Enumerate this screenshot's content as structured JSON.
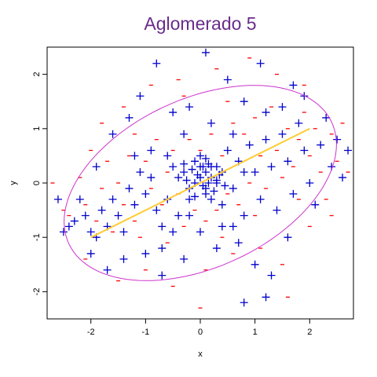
{
  "chart_data": {
    "type": "scatter",
    "title": "Aglomerado 5",
    "xlabel": "x",
    "ylabel": "y",
    "xlim": [
      -2.8,
      2.8
    ],
    "ylim": [
      -2.5,
      2.5
    ],
    "x_ticks": [
      -2,
      -1,
      0,
      1,
      2
    ],
    "y_ticks": [
      -2,
      -1,
      0,
      1,
      2
    ],
    "x_tick_labels": [
      "-2",
      "-1",
      "0",
      "1",
      "2"
    ],
    "y_tick_labels": [
      "-2",
      "-1",
      "0",
      "1",
      "2"
    ],
    "grid": false,
    "colors": {
      "title": "#6a2c8a",
      "plus_points": "#0000cc",
      "minus_points": "#ff0000",
      "ellipse": "#cc33cc",
      "fit_line": "#ffcc33"
    },
    "series": [
      {
        "marker": "plus",
        "points": [
          [
            -2.6,
            -0.3
          ],
          [
            -2.5,
            -0.9
          ],
          [
            -2.4,
            -0.8
          ],
          [
            -2.3,
            -0.7
          ],
          [
            -2.2,
            -0.3
          ],
          [
            -2.1,
            -0.6
          ],
          [
            -2.0,
            -0.9
          ],
          [
            -1.9,
            -1.0
          ],
          [
            -1.9,
            0.3
          ],
          [
            -1.8,
            -0.5
          ],
          [
            -1.7,
            -0.8
          ],
          [
            -1.6,
            -0.3
          ],
          [
            -1.5,
            -0.6
          ],
          [
            -1.4,
            -0.9
          ],
          [
            -1.3,
            -0.1
          ],
          [
            -1.2,
            -0.4
          ],
          [
            -1.1,
            0.2
          ],
          [
            -1.0,
            -0.2
          ],
          [
            -0.9,
            0.1
          ],
          [
            -0.8,
            -0.5
          ],
          [
            -0.7,
            -0.8
          ],
          [
            -0.6,
            0.5
          ],
          [
            -0.5,
            0.3
          ],
          [
            -0.4,
            -0.6
          ],
          [
            -0.3,
            0.2
          ],
          [
            -0.2,
            -0.3
          ],
          [
            -0.1,
            0.4
          ],
          [
            0.0,
            0.1
          ],
          [
            0.1,
            -0.2
          ],
          [
            0.2,
            0.3
          ],
          [
            0.3,
            0.0
          ],
          [
            0.4,
            -0.4
          ],
          [
            0.5,
            0.6
          ],
          [
            0.6,
            -0.1
          ],
          [
            0.7,
            0.4
          ],
          [
            0.8,
            -0.6
          ],
          [
            0.9,
            0.7
          ],
          [
            1.0,
            0.2
          ],
          [
            1.1,
            -0.3
          ],
          [
            1.2,
            0.8
          ],
          [
            1.3,
            0.3
          ],
          [
            1.4,
            -0.5
          ],
          [
            1.5,
            0.9
          ],
          [
            1.6,
            0.4
          ],
          [
            1.7,
            -0.2
          ],
          [
            1.8,
            1.1
          ],
          [
            1.9,
            0.6
          ],
          [
            2.0,
            0.0
          ],
          [
            2.2,
            0.7
          ],
          [
            2.3,
            1.2
          ],
          [
            2.4,
            0.3
          ],
          [
            2.5,
            0.8
          ],
          [
            2.7,
            0.6
          ],
          [
            2.6,
            0.1
          ],
          [
            -1.6,
            0.9
          ],
          [
            -1.3,
            1.2
          ],
          [
            -1.1,
            1.6
          ],
          [
            -0.8,
            2.2
          ],
          [
            -0.5,
            1.3
          ],
          [
            -0.2,
            1.4
          ],
          [
            0.1,
            2.4
          ],
          [
            0.5,
            1.9
          ],
          [
            0.8,
            1.5
          ],
          [
            1.1,
            2.2
          ],
          [
            1.7,
            1.8
          ],
          [
            1.5,
            1.4
          ],
          [
            0.2,
            1.1
          ],
          [
            -0.3,
            0.9
          ],
          [
            -1.0,
            -1.3
          ],
          [
            -0.7,
            -1.7
          ],
          [
            -0.3,
            -1.4
          ],
          [
            0.0,
            -0.9
          ],
          [
            0.3,
            -1.2
          ],
          [
            0.6,
            -0.8
          ],
          [
            1.0,
            -1.5
          ],
          [
            1.3,
            -1.7
          ],
          [
            1.6,
            -1.0
          ],
          [
            -1.4,
            -1.4
          ],
          [
            -1.7,
            -1.6
          ],
          [
            -2.0,
            -1.3
          ],
          [
            0.0,
            0.3
          ],
          [
            0.1,
            0.2
          ],
          [
            0.2,
            0.1
          ],
          [
            -0.1,
            0.0
          ],
          [
            0.05,
            -0.05
          ],
          [
            0.15,
            0.35
          ],
          [
            -0.15,
            0.25
          ],
          [
            0.25,
            -0.15
          ],
          [
            0.3,
            0.3
          ],
          [
            -0.2,
            -0.1
          ],
          [
            0.1,
            0.45
          ],
          [
            0.35,
            0.15
          ],
          [
            -0.05,
            0.15
          ],
          [
            0.2,
            -0.3
          ],
          [
            0.4,
            0.2
          ],
          [
            -0.3,
            0.35
          ],
          [
            0.1,
            -0.1
          ],
          [
            0.0,
            0.5
          ],
          [
            -0.1,
            -0.25
          ],
          [
            0.3,
            0.05
          ],
          [
            0.45,
            -0.05
          ],
          [
            -0.25,
            0.05
          ],
          [
            0.15,
            0.0
          ],
          [
            0.05,
            0.3
          ],
          [
            -0.6,
            -0.3
          ],
          [
            -0.4,
            0.1
          ],
          [
            -0.5,
            -0.9
          ],
          [
            0.6,
            0.9
          ],
          [
            0.8,
            0.2
          ],
          [
            1.2,
            1.3
          ],
          [
            -0.9,
            0.6
          ],
          [
            -1.2,
            0.5
          ],
          [
            0.4,
            -0.8
          ],
          [
            0.7,
            -1.1
          ],
          [
            -0.2,
            -0.6
          ],
          [
            1.9,
            1.6
          ],
          [
            2.1,
            -0.4
          ],
          [
            1.2,
            -2.1
          ],
          [
            0.8,
            -2.2
          ],
          [
            -0.7,
            -1.2
          ]
        ]
      },
      {
        "marker": "minus",
        "points": [
          [
            -2.7,
            0.0
          ],
          [
            -2.4,
            -0.6
          ],
          [
            -2.2,
            0.1
          ],
          [
            -2.1,
            -0.4
          ],
          [
            -1.9,
            -0.7
          ],
          [
            -1.8,
            -0.1
          ],
          [
            -1.7,
            0.4
          ],
          [
            -1.6,
            -0.9
          ],
          [
            -1.5,
            0.0
          ],
          [
            -1.4,
            -0.4
          ],
          [
            -1.3,
            0.5
          ],
          [
            -1.2,
            -0.7
          ],
          [
            -1.1,
            -1.0
          ],
          [
            -1.0,
            0.4
          ],
          [
            -0.9,
            -0.1
          ],
          [
            -0.8,
            0.8
          ],
          [
            -0.7,
            -0.4
          ],
          [
            -0.6,
            -1.1
          ],
          [
            -0.5,
            0.6
          ],
          [
            -0.4,
            -0.2
          ],
          [
            -0.3,
            -0.8
          ],
          [
            -0.2,
            0.8
          ],
          [
            -0.1,
            -0.5
          ],
          [
            0.0,
            0.6
          ],
          [
            0.1,
            -0.7
          ],
          [
            0.2,
            0.9
          ],
          [
            0.3,
            -0.5
          ],
          [
            0.4,
            0.5
          ],
          [
            0.5,
            -0.2
          ],
          [
            0.6,
            1.1
          ],
          [
            0.7,
            -0.4
          ],
          [
            0.8,
            0.9
          ],
          [
            0.9,
            0.0
          ],
          [
            1.0,
            1.2
          ],
          [
            1.1,
            0.5
          ],
          [
            1.2,
            -0.1
          ],
          [
            1.3,
            1.4
          ],
          [
            1.4,
            0.6
          ],
          [
            1.5,
            0.1
          ],
          [
            1.6,
            1.0
          ],
          [
            1.7,
            0.3
          ],
          [
            1.8,
            -0.3
          ],
          [
            1.9,
            1.3
          ],
          [
            2.0,
            0.5
          ],
          [
            2.1,
            1.0
          ],
          [
            2.2,
            0.2
          ],
          [
            2.3,
            -0.3
          ],
          [
            2.4,
            0.9
          ],
          [
            2.5,
            0.4
          ],
          [
            2.6,
            1.1
          ],
          [
            -1.8,
            1.1
          ],
          [
            -1.4,
            1.4
          ],
          [
            -0.9,
            1.8
          ],
          [
            -0.4,
            1.9
          ],
          [
            0.3,
            2.1
          ],
          [
            0.9,
            2.3
          ],
          [
            1.4,
            2.0
          ],
          [
            1.9,
            1.8
          ],
          [
            -2.1,
            -1.4
          ],
          [
            -1.5,
            -1.8
          ],
          [
            -1.0,
            -1.6
          ],
          [
            -0.5,
            -1.9
          ],
          [
            0.1,
            -1.6
          ],
          [
            0.6,
            -1.3
          ],
          [
            1.1,
            -1.2
          ],
          [
            1.5,
            -1.5
          ],
          [
            2.0,
            -0.8
          ],
          [
            -2.5,
            -0.5
          ],
          [
            2.7,
            0.2
          ],
          [
            0.0,
            -2.3
          ],
          [
            1.6,
            -2.1
          ],
          [
            -0.3,
            1.6
          ],
          [
            0.5,
            1.5
          ],
          [
            -1.2,
            0.9
          ],
          [
            1.0,
            -0.6
          ],
          [
            -0.6,
            0.2
          ],
          [
            0.4,
            -1.0
          ],
          [
            1.8,
            0.8
          ],
          [
            -2.0,
            0.6
          ],
          [
            2.4,
            -0.6
          ]
        ]
      }
    ],
    "ellipse": {
      "cx": 0.0,
      "cy": 0.0,
      "rx": 2.65,
      "ry": 1.55,
      "angle_deg": 25
    },
    "fit_line": [
      [
        -2.0,
        -1.0
      ],
      [
        2.0,
        1.0
      ]
    ]
  }
}
